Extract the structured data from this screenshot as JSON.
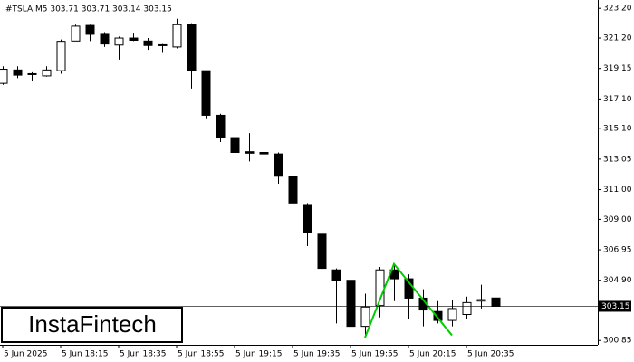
{
  "chart_data": {
    "type": "candlestick",
    "title": "#TSLA,M5  303.71 303.71 303.14 303.15",
    "watermark": "InstaFintech",
    "categories": [
      "5 Jun 2025",
      null,
      null,
      null,
      "5 Jun 18:15",
      null,
      null,
      null,
      "5 Jun 18:35",
      null,
      null,
      null,
      "5 Jun 18:55",
      null,
      null,
      null,
      "5 Jun 19:15",
      null,
      null,
      null,
      "5 Jun 19:35",
      null,
      null,
      null,
      "5 Jun 19:55",
      null,
      null,
      null,
      "5 Jun 20:15",
      null,
      null,
      null,
      "5 Jun 20:35",
      null,
      null
    ],
    "open": [
      318.15,
      319.05,
      318.75,
      318.65,
      319.0,
      321.0,
      322.05,
      321.45,
      320.73,
      321.2,
      321.0,
      320.75,
      320.6,
      322.1,
      319.0,
      316.0,
      314.5,
      313.55,
      313.5,
      313.4,
      311.9,
      310.0,
      308.0,
      305.6,
      304.9,
      301.8,
      303.2,
      305.6,
      305.0,
      303.7,
      302.8,
      302.2,
      302.6,
      303.5,
      303.71
    ],
    "high": [
      319.3,
      319.3,
      318.9,
      319.3,
      321.1,
      322.1,
      322.1,
      321.6,
      321.3,
      321.5,
      321.2,
      320.8,
      322.5,
      322.2,
      319.0,
      316.1,
      314.6,
      314.8,
      314.3,
      313.5,
      312.6,
      310.1,
      308.1,
      305.7,
      305.0,
      304.0,
      305.8,
      306.0,
      305.3,
      304.3,
      303.5,
      303.6,
      303.8,
      304.6,
      303.71
    ],
    "low": [
      318.05,
      318.5,
      318.3,
      318.6,
      318.8,
      321.0,
      321.0,
      320.6,
      319.75,
      321.0,
      320.4,
      320.2,
      320.5,
      317.8,
      315.8,
      314.2,
      312.2,
      312.9,
      313.0,
      311.4,
      309.9,
      307.2,
      304.5,
      302.0,
      301.3,
      301.2,
      302.4,
      303.5,
      302.3,
      301.8,
      302.0,
      301.8,
      302.3,
      303.0,
      303.14
    ],
    "close": [
      319.1,
      318.7,
      318.8,
      319.05,
      320.98,
      322.0,
      321.45,
      320.8,
      321.2,
      321.05,
      320.7,
      320.7,
      322.1,
      319.0,
      316.0,
      314.5,
      313.5,
      313.45,
      313.4,
      311.9,
      310.1,
      308.1,
      305.7,
      304.9,
      301.8,
      303.1,
      305.6,
      305.0,
      303.7,
      302.9,
      302.2,
      303.0,
      303.4,
      303.6,
      303.15
    ],
    "current_price": 303.15,
    "pattern": {
      "color": "#00cc00",
      "x": [
        25,
        27,
        31
      ],
      "prices": [
        301.05,
        306.0,
        301.2
      ]
    },
    "ylim": [
      300.56,
      323.76
    ],
    "yticks": [
      {
        "value": 323.2,
        "label": "323.20"
      },
      {
        "value": 321.2,
        "label": "321.20"
      },
      319.15,
      {
        "value": 317.1,
        "label": "317.10"
      },
      {
        "value": 315.1,
        "label": "315.10"
      },
      313.05,
      {
        "value": 311.0,
        "label": "311.00"
      },
      {
        "value": 309.0,
        "label": "309.00"
      },
      306.95,
      {
        "value": 304.9,
        "label": "304.90"
      },
      300.85
    ]
  }
}
